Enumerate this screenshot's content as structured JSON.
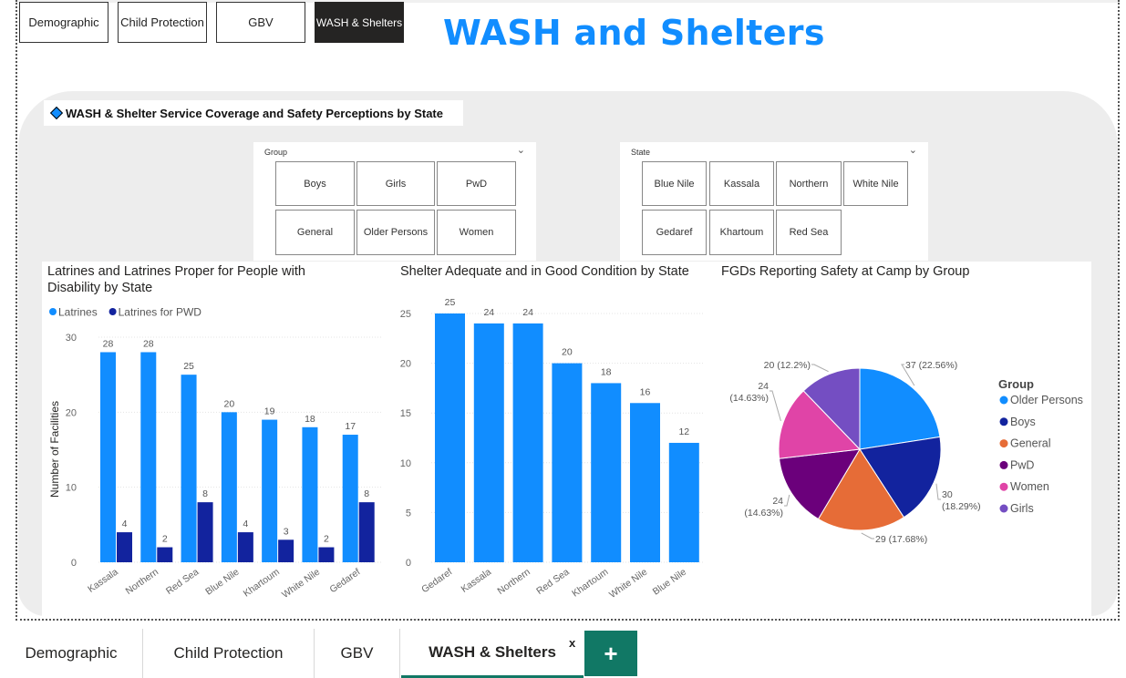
{
  "nav": {
    "demographic": "Demographic",
    "child_protection": "Child Protection",
    "gbv": "GBV",
    "wash": "WASH & Shelters"
  },
  "page_title": "WASH and Shelters",
  "section_title": "WASH & Shelter Service Coverage and Safety Perceptions by State",
  "group_slicer": {
    "header": "Group",
    "options": [
      "Boys",
      "Girls",
      "PwD",
      "General",
      "Older Persons",
      "Women"
    ]
  },
  "state_slicer": {
    "header": "State",
    "options": [
      "Blue Nile",
      "Kassala",
      "Northern",
      "White Nile",
      "Gedaref",
      "Khartoum",
      "Red Sea"
    ]
  },
  "chart1_title_line1": "Latrines and Latrines Proper for People with",
  "chart1_title_line2": "Disability by State",
  "chart2_title": "Shelter Adequate and in Good Condition by State",
  "chart3_title": "FGDs Reporting Safety at Camp by Group",
  "chart_data": [
    {
      "type": "bar",
      "title": "Latrines and Latrines Proper for People with Disability by State",
      "categories": [
        "Kassala",
        "Northern",
        "Red Sea",
        "Blue Nile",
        "Khartoum",
        "White Nile",
        "Gedaref"
      ],
      "series": [
        {
          "name": "Latrines",
          "values": [
            28,
            28,
            25,
            20,
            19,
            18,
            17
          ],
          "color": "#118dff"
        },
        {
          "name": "Latrines for PWD",
          "values": [
            4,
            2,
            8,
            4,
            3,
            2,
            8
          ],
          "color": "#12239e"
        }
      ],
      "ylabel": "Number of Facilities",
      "ylim": [
        0,
        30
      ],
      "yticks": [
        0,
        10,
        20,
        30
      ],
      "legend": "top-left",
      "grid": true
    },
    {
      "type": "bar",
      "title": "Shelter Adequate and in Good Condition by State",
      "categories": [
        "Gedaref",
        "Kassala",
        "Northern",
        "Red Sea",
        "Khartoum",
        "White Nile",
        "Blue Nile"
      ],
      "values": [
        25,
        24,
        24,
        20,
        18,
        16,
        12
      ],
      "color": "#118dff",
      "ylim": [
        0,
        25
      ],
      "yticks": [
        0,
        5,
        10,
        15,
        20,
        25
      ],
      "grid": true
    },
    {
      "type": "pie",
      "title": "FGDs Reporting Safety at Camp by Group",
      "legend_title": "Group",
      "legend": "right",
      "slices": [
        {
          "name": "Older Persons",
          "value": 37,
          "label": "37 (22.56%)",
          "color": "#118dff"
        },
        {
          "name": "Boys",
          "value": 30,
          "label": "30 (18.29%)",
          "color": "#12239e"
        },
        {
          "name": "General",
          "value": 29,
          "label": "29 (17.68%)",
          "color": "#e66c37"
        },
        {
          "name": "PwD",
          "value": 24,
          "label": "24 (14.63%)",
          "color": "#6b007b"
        },
        {
          "name": "Women",
          "value": 24,
          "label": "24 (14.63%)",
          "color": "#e044a7"
        },
        {
          "name": "Girls",
          "value": 20,
          "label": "20 (12.2%)",
          "color": "#744ec2"
        }
      ]
    }
  ],
  "tabs": [
    "Demographic",
    "Child Protection",
    "GBV",
    "WASH & Shelters"
  ],
  "close_glyph": "x",
  "add_glyph": "+"
}
